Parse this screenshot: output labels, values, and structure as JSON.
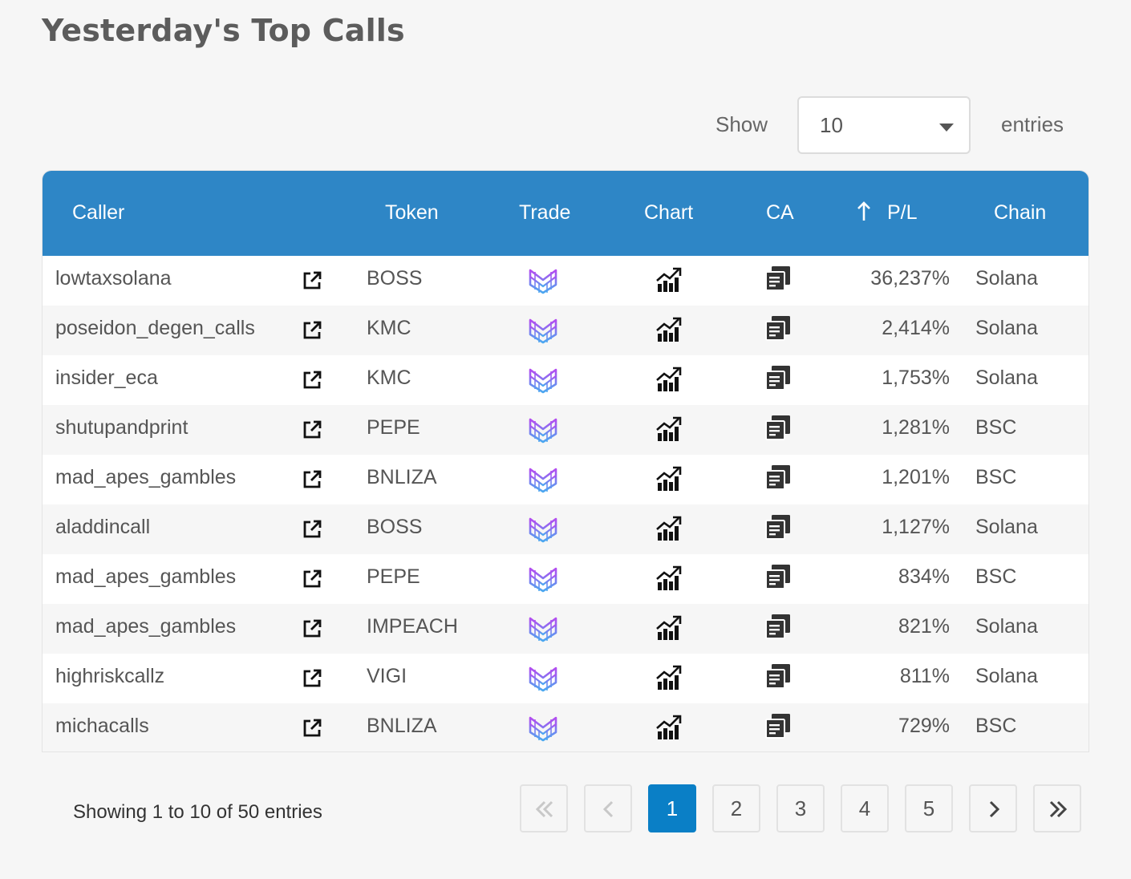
{
  "title": "Yesterday's Top Calls",
  "length": {
    "show_label": "Show",
    "selected": "10",
    "entries_label": "entries"
  },
  "columns": {
    "caller": "Caller",
    "token": "Token",
    "trade": "Trade",
    "chart": "Chart",
    "ca": "CA",
    "pl": "P/L",
    "chain": "Chain"
  },
  "sort": {
    "column": "pl",
    "icon": "arrow-up-icon"
  },
  "rows": [
    {
      "caller": "lowtaxsolana",
      "token": "BOSS",
      "pl": "36,237%",
      "chain": "Solana"
    },
    {
      "caller": "poseidon_degen_calls",
      "token": "KMC",
      "pl": "2,414%",
      "chain": "Solana"
    },
    {
      "caller": "insider_eca",
      "token": "KMC",
      "pl": "1,753%",
      "chain": "Solana"
    },
    {
      "caller": "shutupandprint",
      "token": "PEPE",
      "pl": "1,281%",
      "chain": "BSC"
    },
    {
      "caller": "mad_apes_gambles",
      "token": "BNLIZA",
      "pl": "1,201%",
      "chain": "BSC"
    },
    {
      "caller": "aladdincall",
      "token": "BOSS",
      "pl": "1,127%",
      "chain": "Solana"
    },
    {
      "caller": "mad_apes_gambles",
      "token": "PEPE",
      "pl": "834%",
      "chain": "BSC"
    },
    {
      "caller": "mad_apes_gambles",
      "token": "IMPEACH",
      "pl": "821%",
      "chain": "Solana"
    },
    {
      "caller": "highriskcallz",
      "token": "VIGI",
      "pl": "811%",
      "chain": "Solana"
    },
    {
      "caller": "michacalls",
      "token": "BNLIZA",
      "pl": "729%",
      "chain": "BSC"
    }
  ],
  "info": "Showing 1 to 10 of 50 entries",
  "pagination": {
    "pages": [
      "1",
      "2",
      "3",
      "4",
      "5"
    ],
    "current": "1"
  },
  "colors": {
    "header_bg": "#2e86c6",
    "active_page": "#0a7fc6",
    "trade_icon_gradient": [
      "#b44cf0",
      "#4aa8f0"
    ]
  }
}
